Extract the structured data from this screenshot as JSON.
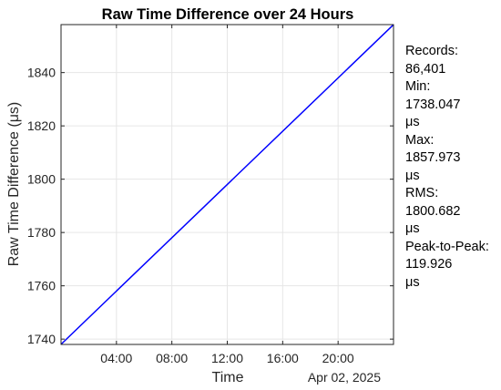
{
  "chart_data": {
    "type": "line",
    "title": "Raw Time Difference over 24 Hours",
    "xlabel": "Time",
    "ylabel": "Raw Time Difference (μs)",
    "x_date_label": "Apr 02, 2025",
    "x_ticks": [
      "04:00",
      "08:00",
      "12:00",
      "16:00",
      "20:00"
    ],
    "y_ticks": [
      1740,
      1760,
      1780,
      1800,
      1820,
      1840
    ],
    "xlim": [
      "00:00",
      "24:00"
    ],
    "ylim": [
      1738,
      1858
    ],
    "grid": true,
    "series": [
      {
        "color": "#0000ff",
        "x": [
          "00:00",
          "24:00"
        ],
        "values": [
          1738.047,
          1857.973
        ]
      }
    ]
  },
  "stats": [
    {
      "label": "Records:",
      "value": "86,401",
      "unit": ""
    },
    {
      "label": "Min:",
      "value": "1738.047",
      "unit": "μs"
    },
    {
      "label": "Max:",
      "value": "1857.973",
      "unit": "μs"
    },
    {
      "label": "RMS:",
      "value": "1800.682",
      "unit": "μs"
    },
    {
      "label": "Peak-to-Peak:",
      "value": "119.926",
      "unit": "μs"
    }
  ]
}
